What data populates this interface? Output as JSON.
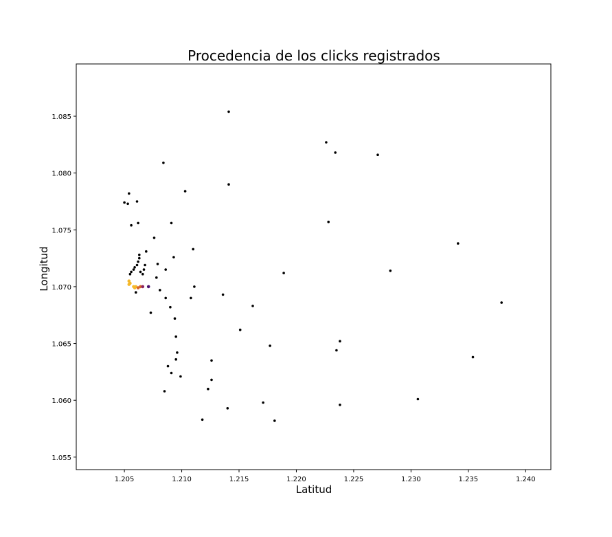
{
  "chart_data": {
    "type": "scatter",
    "title": "Procedencia de los clicks registrados",
    "xlabel": "Latitud",
    "ylabel": "Longitud",
    "xlim": [
      1.2008,
      1.2422
    ],
    "ylim": [
      1.0539,
      1.0896
    ],
    "xticks": [
      "1.205",
      "1.210",
      "1.215",
      "1.220",
      "1.225",
      "1.230",
      "1.235",
      "1.240"
    ],
    "yticks": [
      "1.055",
      "1.060",
      "1.065",
      "1.070",
      "1.075",
      "1.080",
      "1.085"
    ],
    "grid": false,
    "colors": {
      "default": "#000000",
      "dense_high": "#f5b82a",
      "dense_mid": "#d9642a",
      "dense_low": "#8b2463",
      "dense_min": "#4a1270"
    },
    "points": [
      {
        "x": 1.2141,
        "y": 1.0854,
        "c": "default"
      },
      {
        "x": 1.2226,
        "y": 1.0827,
        "c": "default"
      },
      {
        "x": 1.2234,
        "y": 1.0818,
        "c": "default"
      },
      {
        "x": 1.2271,
        "y": 1.0816,
        "c": "default"
      },
      {
        "x": 1.2084,
        "y": 1.0809,
        "c": "default"
      },
      {
        "x": 1.2141,
        "y": 1.079,
        "c": "default"
      },
      {
        "x": 1.2103,
        "y": 1.0784,
        "c": "default"
      },
      {
        "x": 1.2054,
        "y": 1.0782,
        "c": "default"
      },
      {
        "x": 1.205,
        "y": 1.0774,
        "c": "default"
      },
      {
        "x": 1.2061,
        "y": 1.0775,
        "c": "default"
      },
      {
        "x": 1.2053,
        "y": 1.0773,
        "c": "default"
      },
      {
        "x": 1.2056,
        "y": 1.0754,
        "c": "default"
      },
      {
        "x": 1.2062,
        "y": 1.0756,
        "c": "default"
      },
      {
        "x": 1.2091,
        "y": 1.0756,
        "c": "default"
      },
      {
        "x": 1.2228,
        "y": 1.0757,
        "c": "default"
      },
      {
        "x": 1.2076,
        "y": 1.0743,
        "c": "default"
      },
      {
        "x": 1.2341,
        "y": 1.0738,
        "c": "default"
      },
      {
        "x": 1.211,
        "y": 1.0733,
        "c": "default"
      },
      {
        "x": 1.2069,
        "y": 1.0731,
        "c": "default"
      },
      {
        "x": 1.2063,
        "y": 1.0728,
        "c": "default"
      },
      {
        "x": 1.2063,
        "y": 1.0725,
        "c": "default"
      },
      {
        "x": 1.2093,
        "y": 1.0726,
        "c": "default"
      },
      {
        "x": 1.2062,
        "y": 1.0722,
        "c": "default"
      },
      {
        "x": 1.2061,
        "y": 1.0719,
        "c": "default"
      },
      {
        "x": 1.2079,
        "y": 1.072,
        "c": "default"
      },
      {
        "x": 1.2068,
        "y": 1.0719,
        "c": "default"
      },
      {
        "x": 1.2059,
        "y": 1.0717,
        "c": "default"
      },
      {
        "x": 1.2058,
        "y": 1.0715,
        "c": "default"
      },
      {
        "x": 1.2067,
        "y": 1.0715,
        "c": "default"
      },
      {
        "x": 1.2086,
        "y": 1.0715,
        "c": "default"
      },
      {
        "x": 1.2056,
        "y": 1.0713,
        "c": "default"
      },
      {
        "x": 1.2064,
        "y": 1.0713,
        "c": "default"
      },
      {
        "x": 1.2189,
        "y": 1.0712,
        "c": "default"
      },
      {
        "x": 1.2282,
        "y": 1.0714,
        "c": "default"
      },
      {
        "x": 1.2055,
        "y": 1.0711,
        "c": "default"
      },
      {
        "x": 1.2066,
        "y": 1.0711,
        "c": "default"
      },
      {
        "x": 1.2078,
        "y": 1.0708,
        "c": "default"
      },
      {
        "x": 1.2054,
        "y": 1.0705,
        "c": "dense_high"
      },
      {
        "x": 1.2054,
        "y": 1.0702,
        "c": "dense_high"
      },
      {
        "x": 1.2055,
        "y": 1.0703,
        "c": "dense_high"
      },
      {
        "x": 1.2058,
        "y": 1.07,
        "c": "dense_high"
      },
      {
        "x": 1.2059,
        "y": 1.0699,
        "c": "dense_high"
      },
      {
        "x": 1.206,
        "y": 1.07,
        "c": "dense_high"
      },
      {
        "x": 1.2062,
        "y": 1.0699,
        "c": "dense_mid"
      },
      {
        "x": 1.2064,
        "y": 1.07,
        "c": "dense_mid"
      },
      {
        "x": 1.2066,
        "y": 1.07,
        "c": "dense_low"
      },
      {
        "x": 1.2071,
        "y": 1.07,
        "c": "dense_min"
      },
      {
        "x": 1.2111,
        "y": 1.07,
        "c": "default"
      },
      {
        "x": 1.2081,
        "y": 1.0697,
        "c": "default"
      },
      {
        "x": 1.206,
        "y": 1.0695,
        "c": "default"
      },
      {
        "x": 1.2136,
        "y": 1.0693,
        "c": "default"
      },
      {
        "x": 1.2086,
        "y": 1.069,
        "c": "default"
      },
      {
        "x": 1.2108,
        "y": 1.069,
        "c": "default"
      },
      {
        "x": 1.2162,
        "y": 1.0683,
        "c": "default"
      },
      {
        "x": 1.209,
        "y": 1.0682,
        "c": "default"
      },
      {
        "x": 1.2379,
        "y": 1.0686,
        "c": "default"
      },
      {
        "x": 1.2073,
        "y": 1.0677,
        "c": "default"
      },
      {
        "x": 1.2094,
        "y": 1.0672,
        "c": "default"
      },
      {
        "x": 1.2151,
        "y": 1.0662,
        "c": "default"
      },
      {
        "x": 1.2095,
        "y": 1.0656,
        "c": "default"
      },
      {
        "x": 1.2238,
        "y": 1.0652,
        "c": "default"
      },
      {
        "x": 1.2177,
        "y": 1.0648,
        "c": "default"
      },
      {
        "x": 1.2235,
        "y": 1.0644,
        "c": "default"
      },
      {
        "x": 1.2096,
        "y": 1.0642,
        "c": "default"
      },
      {
        "x": 1.2354,
        "y": 1.0638,
        "c": "default"
      },
      {
        "x": 1.2095,
        "y": 1.0636,
        "c": "default"
      },
      {
        "x": 1.2126,
        "y": 1.0635,
        "c": "default"
      },
      {
        "x": 1.2088,
        "y": 1.063,
        "c": "default"
      },
      {
        "x": 1.2091,
        "y": 1.0624,
        "c": "default"
      },
      {
        "x": 1.2099,
        "y": 1.0621,
        "c": "default"
      },
      {
        "x": 1.2126,
        "y": 1.0618,
        "c": "default"
      },
      {
        "x": 1.2123,
        "y": 1.061,
        "c": "default"
      },
      {
        "x": 1.2085,
        "y": 1.0608,
        "c": "default"
      },
      {
        "x": 1.2306,
        "y": 1.0601,
        "c": "default"
      },
      {
        "x": 1.2171,
        "y": 1.0598,
        "c": "default"
      },
      {
        "x": 1.2238,
        "y": 1.0596,
        "c": "default"
      },
      {
        "x": 1.214,
        "y": 1.0593,
        "c": "default"
      },
      {
        "x": 1.2118,
        "y": 1.0583,
        "c": "default"
      },
      {
        "x": 1.2181,
        "y": 1.0582,
        "c": "default"
      }
    ]
  }
}
